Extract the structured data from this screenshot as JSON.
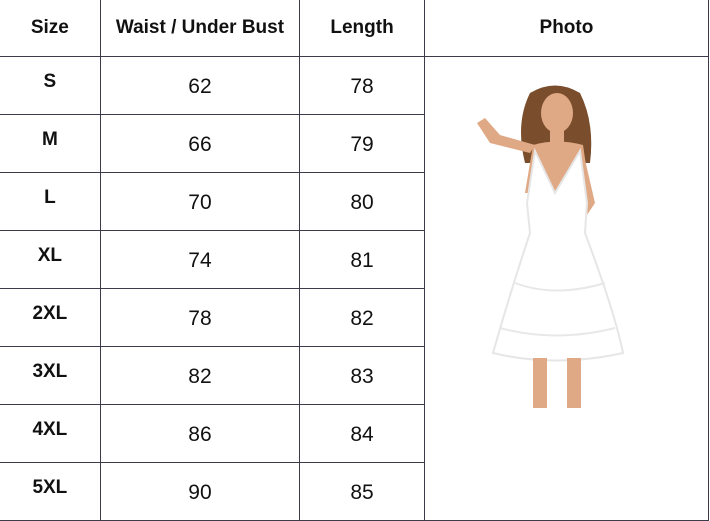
{
  "headers": [
    "Size",
    "Waist / Under Bust",
    "Length",
    "Photo"
  ],
  "rows": [
    {
      "size": "S",
      "waist": "62",
      "length": "78"
    },
    {
      "size": "M",
      "waist": "66",
      "length": "79"
    },
    {
      "size": "L",
      "waist": "70",
      "length": "80"
    },
    {
      "size": "XL",
      "waist": "74",
      "length": "81"
    },
    {
      "size": "2XL",
      "waist": "78",
      "length": "82"
    },
    {
      "size": "3XL",
      "waist": "82",
      "length": "83"
    },
    {
      "size": "4XL",
      "waist": "86",
      "length": "84"
    },
    {
      "size": "5XL",
      "waist": "90",
      "length": "85"
    }
  ],
  "colors": {
    "border": "#3e3a4a",
    "dress": "#ffffff",
    "skin": "#e0a985",
    "hair": "#7a4e2c"
  }
}
